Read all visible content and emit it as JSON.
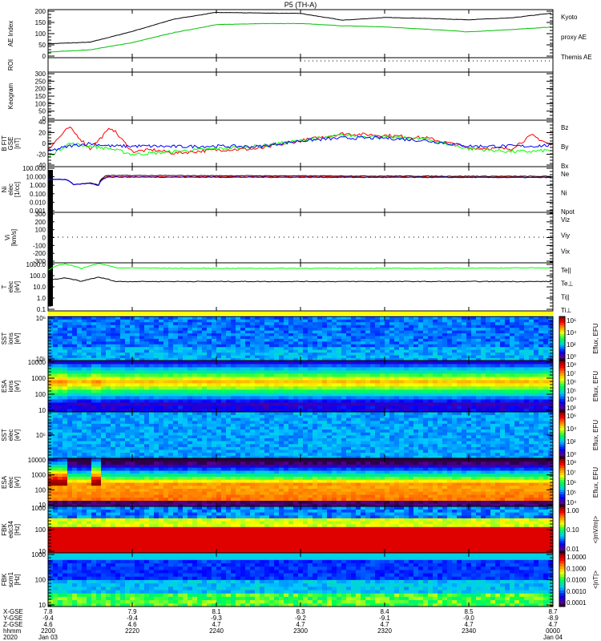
{
  "title": "P5 (TH-A)",
  "colors": {
    "red": "#ff0000",
    "green": "#00ff00",
    "blue": "#0000ff",
    "black": "#000000",
    "yellow": "#ffff00"
  },
  "chart_data": [
    {
      "type": "line",
      "name": "ae",
      "ylabel": "AE Index",
      "yticks": [
        "200",
        "150",
        "100",
        "50",
        "0"
      ],
      "ylim": [
        0,
        200
      ],
      "x": [
        0,
        10,
        20,
        30,
        40,
        50,
        60,
        70,
        80,
        90,
        100,
        110,
        120
      ],
      "series": [
        {
          "name": "Themis AE",
          "color": "#000000",
          "values": [
            55,
            62,
            110,
            165,
            195,
            192,
            190,
            160,
            172,
            168,
            162,
            170,
            192
          ]
        },
        {
          "name": "Kyoto proxy AE",
          "color": "#00c000",
          "values": [
            18,
            28,
            60,
            105,
            140,
            145,
            145,
            135,
            130,
            120,
            108,
            118,
            130
          ]
        }
      ],
      "legend": [
        "Kyoto",
        "proxy AE",
        "Themis AE"
      ]
    },
    {
      "type": "line",
      "name": "roi",
      "ylabel": "ROI"
    },
    {
      "type": "line",
      "name": "keogram",
      "ylabel": "Keogram",
      "yticks": [
        "300",
        "250",
        "200",
        "150",
        "100",
        "50",
        "0"
      ],
      "ylim": [
        0,
        300
      ]
    },
    {
      "type": "line",
      "name": "bfit",
      "ylabel": [
        "B FIT",
        "GSE",
        "[nT]"
      ],
      "yticks": [
        "40",
        "20",
        "0",
        "-20",
        "-40"
      ],
      "ylim": [
        -40,
        40
      ],
      "x": [
        0,
        5,
        10,
        15,
        20,
        25,
        30,
        40,
        50,
        60,
        70,
        80,
        90,
        100,
        110,
        115,
        120
      ],
      "series": [
        {
          "name": "Bz",
          "color": "#ff0000",
          "values": [
            -10,
            30,
            -10,
            30,
            -15,
            -12,
            -18,
            -12,
            -10,
            5,
            18,
            15,
            10,
            -8,
            -10,
            15,
            -5
          ]
        },
        {
          "name": "By",
          "color": "#00ff00",
          "values": [
            -25,
            0,
            -5,
            -10,
            -20,
            -18,
            -15,
            -10,
            -5,
            5,
            15,
            12,
            8,
            -10,
            -15,
            -15,
            -12
          ]
        },
        {
          "name": "Bx",
          "color": "#0000ff",
          "values": [
            -15,
            -5,
            0,
            -5,
            -5,
            -5,
            -6,
            -5,
            -6,
            5,
            10,
            10,
            5,
            -5,
            -5,
            -5,
            -3
          ]
        }
      ],
      "legend": [
        "Bz",
        "By",
        "Bx"
      ]
    },
    {
      "type": "line",
      "name": "density",
      "ylabel": [
        "Ni",
        "elec",
        "[1/cc]"
      ],
      "yticks": [
        "100.000",
        "10.000",
        "1.000",
        "0.100",
        "0.010",
        "0.001"
      ],
      "ylim": [
        0.001,
        100
      ],
      "x": [
        0,
        4,
        6,
        10,
        12,
        14,
        16,
        120
      ],
      "series": [
        {
          "name": "Ne",
          "color": "#ff0000",
          "values": [
            5,
            5,
            1.2,
            1.8,
            1,
            10,
            10,
            9
          ]
        },
        {
          "name": "Ni",
          "color": "#000000",
          "values": [
            5,
            5,
            1.2,
            1.8,
            1,
            14,
            14,
            11
          ]
        },
        {
          "name": "Npot",
          "color": "#0000ff",
          "values": [
            5,
            5,
            1.1,
            1.7,
            0.9,
            9,
            9,
            8
          ]
        }
      ],
      "legend": [
        "Ne",
        "Ni",
        "Npot"
      ]
    },
    {
      "type": "line",
      "name": "vi",
      "ylabel": [
        "Vi",
        "[km/s]"
      ],
      "yticks": [
        "300",
        "200",
        "100",
        "0",
        "-100",
        "-200",
        "-300"
      ],
      "ylim": [
        -300,
        300
      ],
      "legend": [
        "Viz",
        "Viy",
        "Vix"
      ]
    },
    {
      "type": "line",
      "name": "temp",
      "ylabel": [
        "T",
        "elec",
        "[eV]"
      ],
      "yticks": [
        "1000.0",
        "100.0",
        "10.0",
        "1.0",
        "0.1"
      ],
      "ylim": [
        0.1,
        1000
      ],
      "x": [
        0,
        4,
        8,
        12,
        16,
        30,
        60,
        90,
        120
      ],
      "series": [
        {
          "name": "Te_par",
          "color": "#000000",
          "values": [
            40,
            60,
            30,
            70,
            30,
            30,
            30,
            30,
            30
          ]
        },
        {
          "name": "Ti_par",
          "color": "#00ff00",
          "values": [
            300,
            1100,
            400,
            1200,
            500,
            450,
            450,
            450,
            500
          ]
        }
      ],
      "legend": [
        "Te||",
        "Te⊥",
        "Ti||",
        "Ti⊥"
      ]
    },
    {
      "type": "heatmap",
      "name": "sst-ion",
      "ylabel": [
        "SST",
        "ions",
        "[eV]"
      ],
      "yticks": [
        "10⁶",
        "10⁵"
      ],
      "cbar_ticks": [
        "10⁶",
        "10⁴",
        "10²",
        "10⁰"
      ],
      "cbar_label": "Eflux, EFU"
    },
    {
      "type": "heatmap",
      "name": "esa-ion",
      "ylabel": [
        "ESA",
        "ions",
        "[eV]"
      ],
      "yticks": [
        "10000",
        "1000",
        "100",
        "10"
      ],
      "cbar_ticks": [
        "10⁸",
        "10⁷",
        "10⁶",
        "10⁵",
        "10⁴",
        "10³"
      ],
      "cbar_label": "Eflux, EFU"
    },
    {
      "type": "heatmap",
      "name": "sst-elec",
      "ylabel": [
        "SST",
        "elec",
        "[eV]"
      ],
      "yticks": [
        "10⁵"
      ],
      "cbar_ticks": [
        "10⁶",
        "10⁴",
        "10²",
        "10⁰"
      ],
      "cbar_label": "Eflux, EFU"
    },
    {
      "type": "heatmap",
      "name": "esa-elec",
      "ylabel": [
        "ESA",
        "elec",
        "[eV]"
      ],
      "yticks": [
        "10000",
        "1000",
        "100",
        "10"
      ],
      "cbar_ticks": [
        "10⁸",
        "10⁷",
        "10⁶",
        "10⁵",
        "10⁴"
      ],
      "cbar_label": "Eflux, EFU"
    },
    {
      "type": "heatmap",
      "name": "fbk-edc",
      "ylabel": [
        "FBK",
        "edc34",
        "[Hz]"
      ],
      "yticks": [
        "1000",
        "100",
        "10"
      ],
      "cbar_ticks": [
        "1.00",
        "0.10",
        "0.01"
      ],
      "cbar_label": "<|mV/m|>"
    },
    {
      "type": "heatmap",
      "name": "fbk-scm",
      "ylabel": [
        "FBK",
        "scm1",
        "[Hz]"
      ],
      "yticks": [
        "1000",
        "100",
        "10"
      ],
      "cbar_ticks": [
        "1.0000",
        "0.1000",
        "0.0100",
        "0.0010",
        "0.0001"
      ],
      "cbar_label": "<|nT|>"
    }
  ],
  "xaxis": {
    "row_labels": [
      "X-GSE",
      "Y-GSE",
      "Z-GSE",
      "hhmm",
      "2020"
    ],
    "ticks": [
      {
        "x": "7.8",
        "y": "-9.4",
        "z": "4.6",
        "t": "2200",
        "d": "Jan 03"
      },
      {
        "x": "7.9",
        "y": "-9.4",
        "z": "4.6",
        "t": "2220",
        "d": ""
      },
      {
        "x": "8.1",
        "y": "-9.3",
        "z": "4.7",
        "t": "2240",
        "d": ""
      },
      {
        "x": "8.3",
        "y": "-9.2",
        "z": "4.7",
        "t": "2300",
        "d": ""
      },
      {
        "x": "8.4",
        "y": "-9.1",
        "z": "4.7",
        "t": "2320",
        "d": ""
      },
      {
        "x": "8.5",
        "y": "-9.0",
        "z": "4.7",
        "t": "2340",
        "d": ""
      },
      {
        "x": "8.7",
        "y": "-8.9",
        "z": "4.7",
        "t": "0000",
        "d": "Jan 04"
      }
    ]
  }
}
